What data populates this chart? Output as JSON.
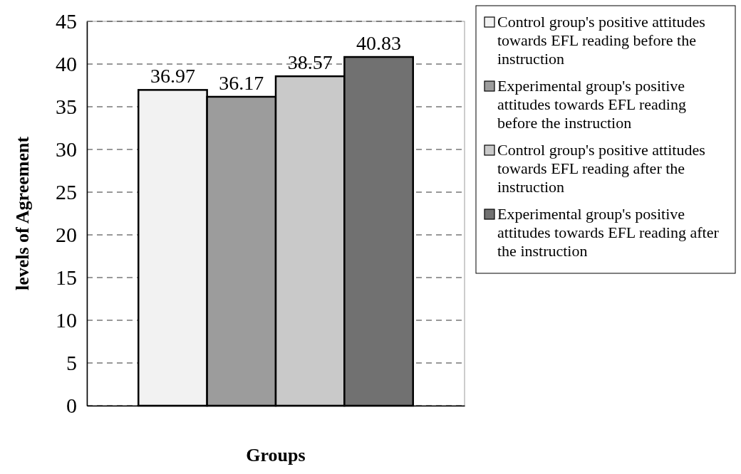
{
  "chart_data": {
    "type": "bar",
    "xlabel": "Groups",
    "ylabel": "levels of Agreement",
    "categories": [
      null
    ],
    "series": [
      {
        "name": "Control group's positive attitudes towards EFL reading before the instruction",
        "color": "#f2f2f2",
        "values": [
          36.97
        ]
      },
      {
        "name": "Experimental group's positive attitudes towards EFL reading before the instruction",
        "color": "#9c9c9c",
        "values": [
          36.17
        ]
      },
      {
        "name": "Control group's positive attitudes towards EFL reading after the instruction",
        "color": "#c9c9c9",
        "values": [
          38.57
        ]
      },
      {
        "name": "Experimental group's positive attitudes towards EFL reading after the instruction",
        "color": "#717171",
        "values": [
          40.83
        ]
      }
    ],
    "ylim": [
      0,
      45
    ],
    "yticks": [
      0,
      5,
      10,
      15,
      20,
      25,
      30,
      35,
      40,
      45
    ],
    "grid": "y",
    "legend": "right",
    "data_labels": true
  }
}
